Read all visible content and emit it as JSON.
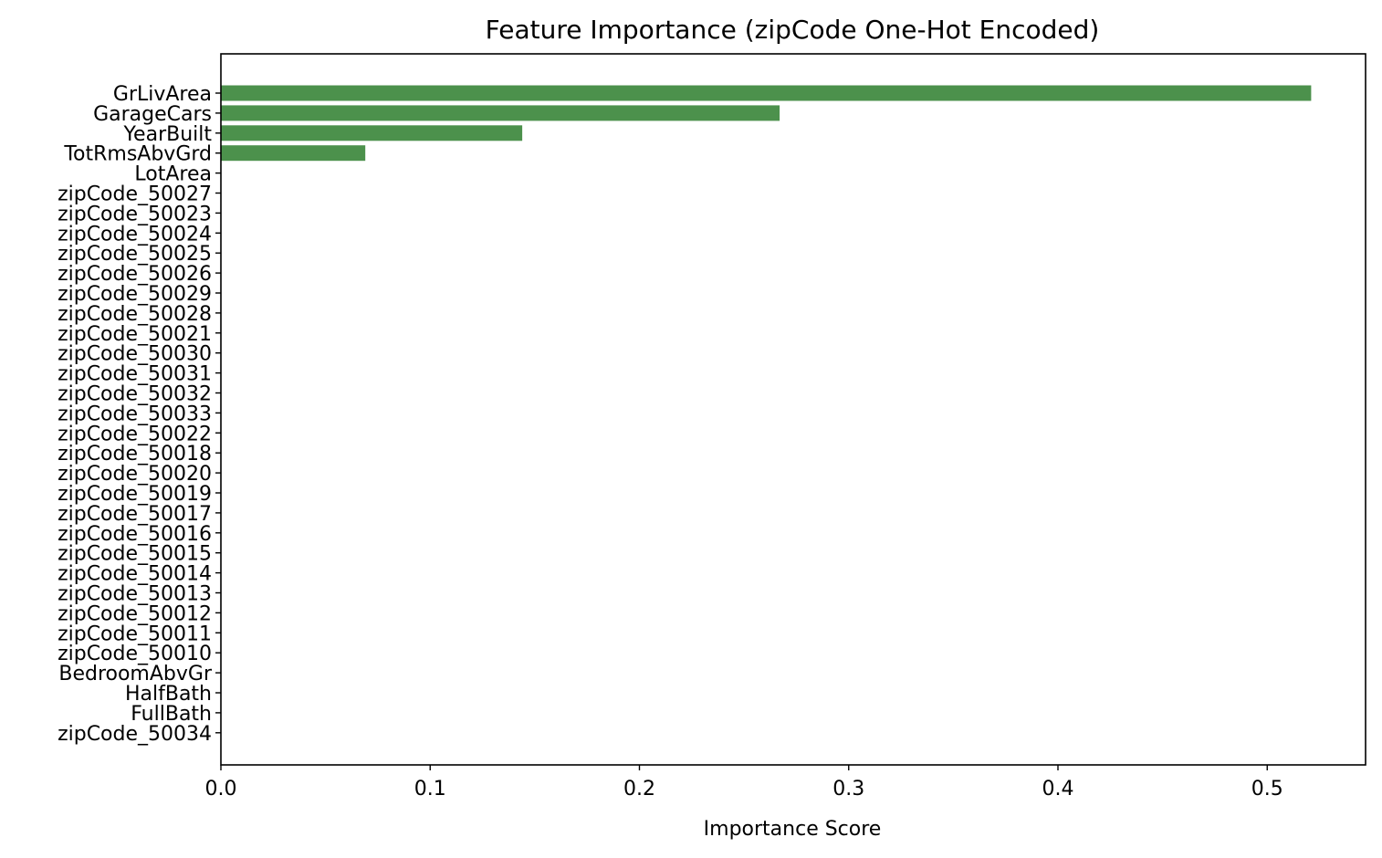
{
  "chart_data": {
    "type": "bar",
    "orientation": "horizontal",
    "title": "Feature Importance (zipCode One-Hot Encoded)",
    "xlabel": "Importance Score",
    "ylabel": "",
    "xlim": [
      0,
      0.547
    ],
    "xticks": [
      "0.0",
      "0.1",
      "0.2",
      "0.3",
      "0.4",
      "0.5"
    ],
    "xtick_values": [
      0.0,
      0.1,
      0.2,
      0.3,
      0.4,
      0.5
    ],
    "grid": false,
    "bar_color": "#4c914c",
    "categories": [
      "GrLivArea",
      "GarageCars",
      "YearBuilt",
      "TotRmsAbvGrd",
      "LotArea",
      "zipCode_50027",
      "zipCode_50023",
      "zipCode_50024",
      "zipCode_50025",
      "zipCode_50026",
      "zipCode_50029",
      "zipCode_50028",
      "zipCode_50021",
      "zipCode_50030",
      "zipCode_50031",
      "zipCode_50032",
      "zipCode_50033",
      "zipCode_50022",
      "zipCode_50018",
      "zipCode_50020",
      "zipCode_50019",
      "zipCode_50017",
      "zipCode_50016",
      "zipCode_50015",
      "zipCode_50014",
      "zipCode_50013",
      "zipCode_50012",
      "zipCode_50011",
      "zipCode_50010",
      "BedroomAbvGr",
      "HalfBath",
      "FullBath",
      "zipCode_50034"
    ],
    "values": [
      0.521,
      0.267,
      0.144,
      0.069,
      0.0,
      0.0,
      0.0,
      0.0,
      0.0,
      0.0,
      0.0,
      0.0,
      0.0,
      0.0,
      0.0,
      0.0,
      0.0,
      0.0,
      0.0,
      0.0,
      0.0,
      0.0,
      0.0,
      0.0,
      0.0,
      0.0,
      0.0,
      0.0,
      0.0,
      0.0,
      0.0,
      0.0,
      0.0
    ]
  }
}
